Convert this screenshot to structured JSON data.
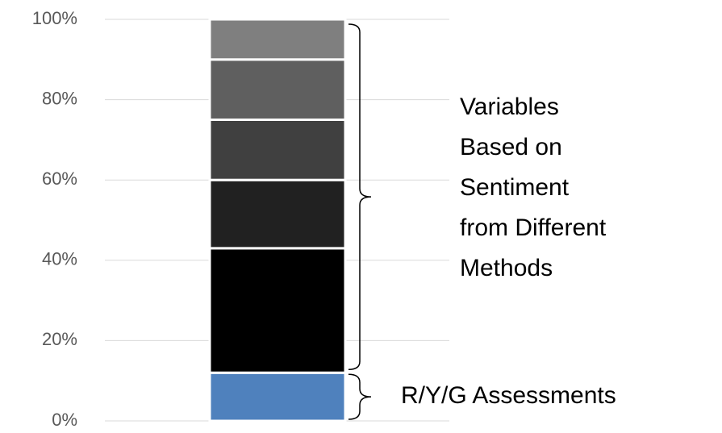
{
  "chart_data": {
    "type": "stacked_bar",
    "series": [
      {
        "color": "#4f81bd",
        "values": [
          12
        ]
      },
      {
        "color": "#000000",
        "values": [
          31
        ]
      },
      {
        "color": "#212121",
        "values": [
          17
        ]
      },
      {
        "color": "#404040",
        "values": [
          15
        ]
      },
      {
        "color": "#5f5f5f",
        "values": [
          15
        ]
      },
      {
        "color": "#7f7f7f",
        "values": [
          10
        ]
      }
    ],
    "ylim": [
      0,
      100
    ],
    "yticks": [
      {
        "value": 0,
        "label": "0%"
      },
      {
        "value": 20,
        "label": "20%"
      },
      {
        "value": 40,
        "label": "40%"
      },
      {
        "value": 60,
        "label": "60%"
      },
      {
        "value": 80,
        "label": "80%"
      },
      {
        "value": 100,
        "label": "100%"
      }
    ],
    "grid": true,
    "annotations": [
      {
        "lines": [
          "Variables",
          "Based on",
          "Sentiment",
          "from Different",
          "Methods"
        ]
      },
      {
        "lines": [
          "R/Y/G Assessments"
        ]
      }
    ]
  }
}
